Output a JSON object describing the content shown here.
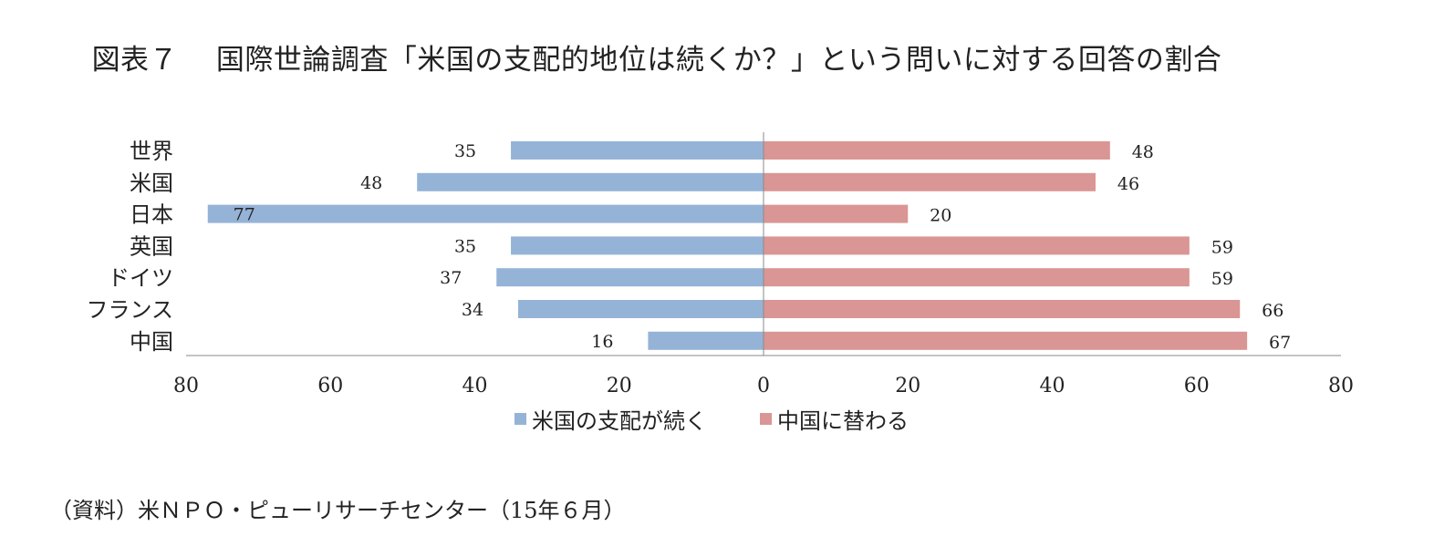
{
  "title": "図表７　 国際世論調査「米国の支配的地位は続くか？」という問いに対する回答の割合",
  "source": "（資料）米ＮＰＯ・ピューリサーチセンター（15年６月）",
  "chart_data": {
    "type": "bar",
    "orientation": "horizontal",
    "layout": "diverging",
    "categories": [
      "世界",
      "米国",
      "日本",
      "英国",
      "ドイツ",
      "フランス",
      "中国"
    ],
    "series": [
      {
        "name": "米国の支配が続く",
        "direction": "left",
        "color": "#95b3d7",
        "values": [
          35,
          48,
          77,
          35,
          37,
          34,
          16
        ]
      },
      {
        "name": "中国に替わる",
        "direction": "right",
        "color": "#d99694",
        "values": [
          48,
          46,
          20,
          59,
          59,
          66,
          67
        ]
      }
    ],
    "xticks": [
      "80",
      "60",
      "40",
      "20",
      "0",
      "20",
      "40",
      "60",
      "80"
    ],
    "xlim": [
      -80,
      80
    ],
    "legend_position": "bottom",
    "grid": false
  }
}
